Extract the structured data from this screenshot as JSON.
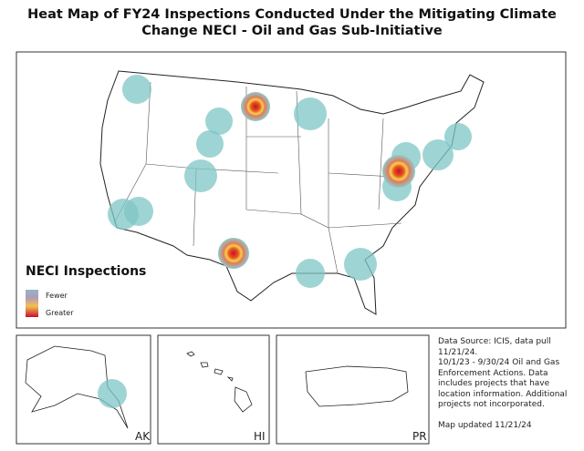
{
  "header": {
    "title": [
      "Heat Map of FY24 Inspections Conducted Under the Mitigating Climate",
      "Change NECI - Oil and Gas Sub-Initiative"
    ]
  },
  "legend": {
    "title": "NECI Inspections",
    "items": [
      "Fewer",
      "Greater"
    ]
  },
  "insets": [
    "AK",
    "HI",
    "PR"
  ],
  "notes": {
    "source": "Data Source: ICIS, data pull 11/21/24.",
    "description": "10/1/23 - 9/30/24 Oil and Gas Enforcement Actions. Data includes projects that have location information. Additional projects not incorporated.",
    "updated": "Map updated 11/21/24"
  }
}
